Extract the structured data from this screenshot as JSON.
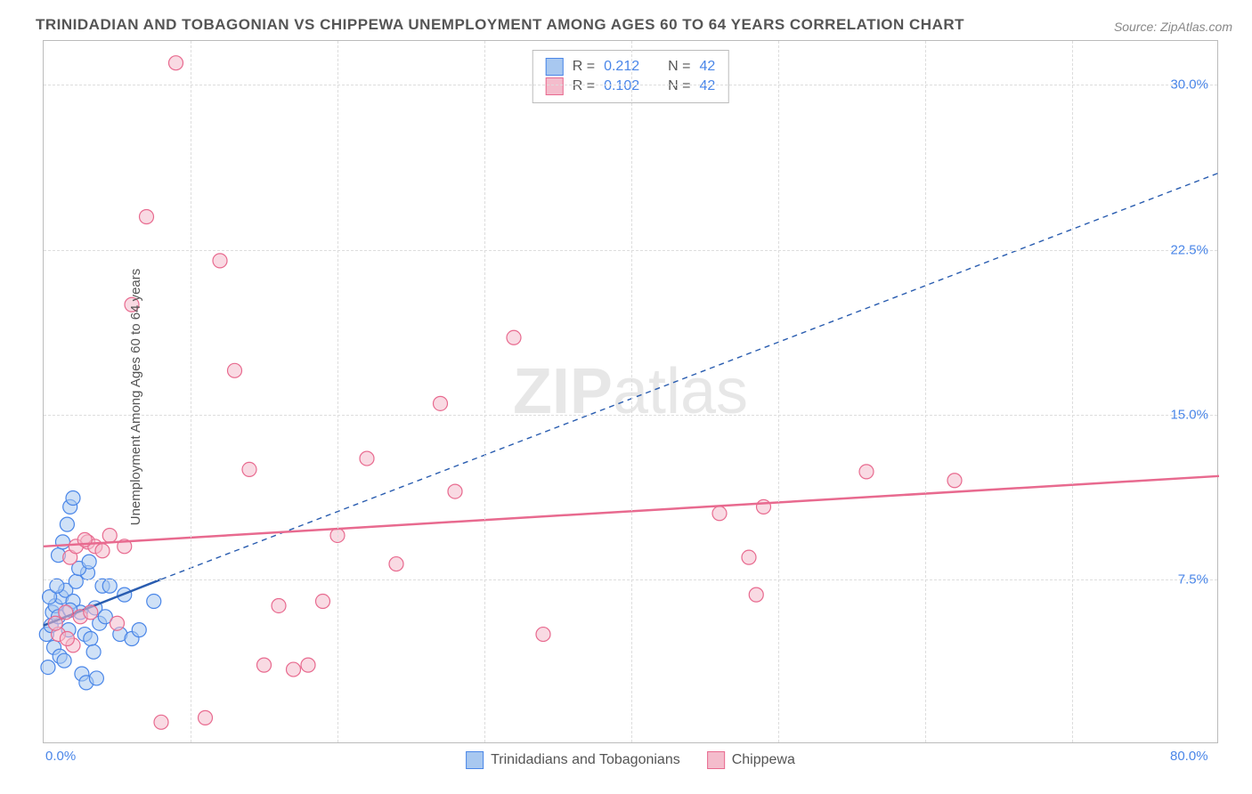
{
  "title": "TRINIDADIAN AND TOBAGONIAN VS CHIPPEWA UNEMPLOYMENT AMONG AGES 60 TO 64 YEARS CORRELATION CHART",
  "source": "Source: ZipAtlas.com",
  "ylabel": "Unemployment Among Ages 60 to 64 years",
  "watermark_a": "ZIP",
  "watermark_b": "atlas",
  "xlim": [
    0,
    80
  ],
  "ylim": [
    0,
    32
  ],
  "xticks": [
    {
      "val": 0,
      "label": "0.0%"
    },
    {
      "val": 80,
      "label": "80.0%"
    }
  ],
  "yticks": [
    {
      "val": 7.5,
      "label": "7.5%"
    },
    {
      "val": 15.0,
      "label": "15.0%"
    },
    {
      "val": 22.5,
      "label": "22.5%"
    },
    {
      "val": 30.0,
      "label": "30.0%"
    }
  ],
  "x_grid": [
    10,
    20,
    30,
    40,
    50,
    60,
    70
  ],
  "marker_radius": 8,
  "marker_stroke_width": 1.2,
  "series": [
    {
      "name": "Trinidadians and Tobagonians",
      "fill": "#a8c8f0",
      "fill_opacity": 0.55,
      "stroke": "#4a86e8",
      "trend_color": "#2a5db0",
      "trend_dash": "none",
      "trend_width": 2.5,
      "trend_continue_dash": "6 5",
      "trend_continue_width": 1.4,
      "trend": {
        "x1": 0,
        "y1": 5.4,
        "x2": 8,
        "y2": 7.5
      },
      "trend_ext": {
        "x1": 8,
        "y1": 7.5,
        "x2": 80,
        "y2": 26.0
      },
      "points": [
        [
          0.2,
          5.0
        ],
        [
          0.5,
          5.4
        ],
        [
          0.6,
          6.0
        ],
        [
          0.8,
          6.3
        ],
        [
          1.0,
          5.8
        ],
        [
          1.2,
          6.7
        ],
        [
          1.5,
          7.0
        ],
        [
          1.7,
          5.2
        ],
        [
          2.0,
          6.5
        ],
        [
          2.2,
          7.4
        ],
        [
          2.5,
          6.0
        ],
        [
          2.8,
          5.0
        ],
        [
          3.0,
          7.8
        ],
        [
          3.2,
          4.8
        ],
        [
          3.5,
          6.2
        ],
        [
          3.8,
          5.5
        ],
        [
          4.0,
          7.2
        ],
        [
          1.0,
          8.6
        ],
        [
          1.3,
          9.2
        ],
        [
          1.6,
          10.0
        ],
        [
          1.8,
          10.8
        ],
        [
          2.0,
          11.2
        ],
        [
          0.7,
          4.4
        ],
        [
          1.1,
          4.0
        ],
        [
          1.4,
          3.8
        ],
        [
          2.6,
          3.2
        ],
        [
          2.9,
          2.8
        ],
        [
          3.6,
          3.0
        ],
        [
          4.5,
          7.2
        ],
        [
          5.2,
          5.0
        ],
        [
          5.5,
          6.8
        ],
        [
          6.0,
          4.8
        ],
        [
          0.4,
          6.7
        ],
        [
          0.9,
          7.2
        ],
        [
          1.8,
          6.1
        ],
        [
          2.4,
          8.0
        ],
        [
          3.1,
          8.3
        ],
        [
          3.4,
          4.2
        ],
        [
          4.2,
          5.8
        ],
        [
          0.3,
          3.5
        ],
        [
          6.5,
          5.2
        ],
        [
          7.5,
          6.5
        ]
      ]
    },
    {
      "name": "Chippewa",
      "fill": "#f4bccc",
      "fill_opacity": 0.55,
      "stroke": "#e86a8f",
      "trend_color": "#e86a8f",
      "trend_dash": "none",
      "trend_width": 2.5,
      "trend": {
        "x1": 0,
        "y1": 9.0,
        "x2": 80,
        "y2": 12.2
      },
      "points": [
        [
          1.0,
          5.0
        ],
        [
          1.5,
          6.0
        ],
        [
          2.0,
          4.5
        ],
        [
          2.5,
          5.8
        ],
        [
          3.0,
          9.2
        ],
        [
          3.5,
          9.0
        ],
        [
          4.0,
          8.8
        ],
        [
          5.0,
          5.5
        ],
        [
          6.0,
          20.0
        ],
        [
          7.0,
          24.0
        ],
        [
          8.0,
          1.0
        ],
        [
          9.0,
          31.0
        ],
        [
          11.0,
          1.2
        ],
        [
          12.0,
          22.0
        ],
        [
          13.0,
          17.0
        ],
        [
          14.0,
          12.5
        ],
        [
          15.0,
          3.6
        ],
        [
          16.0,
          6.3
        ],
        [
          17.0,
          3.4
        ],
        [
          18.0,
          3.6
        ],
        [
          19.0,
          6.5
        ],
        [
          20.0,
          9.5
        ],
        [
          22.0,
          13.0
        ],
        [
          24.0,
          8.2
        ],
        [
          27.0,
          15.5
        ],
        [
          28.0,
          11.5
        ],
        [
          32.0,
          18.5
        ],
        [
          34.0,
          5.0
        ],
        [
          46.0,
          10.5
        ],
        [
          48.0,
          8.5
        ],
        [
          48.5,
          6.8
        ],
        [
          49.0,
          10.8
        ],
        [
          56.0,
          12.4
        ],
        [
          62.0,
          12.0
        ],
        [
          1.8,
          8.5
        ],
        [
          2.2,
          9.0
        ],
        [
          2.8,
          9.3
        ],
        [
          3.2,
          6.0
        ],
        [
          0.8,
          5.5
        ],
        [
          1.6,
          4.8
        ],
        [
          4.5,
          9.5
        ],
        [
          5.5,
          9.0
        ]
      ]
    }
  ],
  "legend_top": [
    {
      "swatch_fill": "#a8c8f0",
      "swatch_stroke": "#4a86e8",
      "r": "0.212",
      "n": "42"
    },
    {
      "swatch_fill": "#f4bccc",
      "swatch_stroke": "#e86a8f",
      "r": "0.102",
      "n": "42"
    }
  ],
  "legend_labels": {
    "r": "R =",
    "n": "N ="
  }
}
